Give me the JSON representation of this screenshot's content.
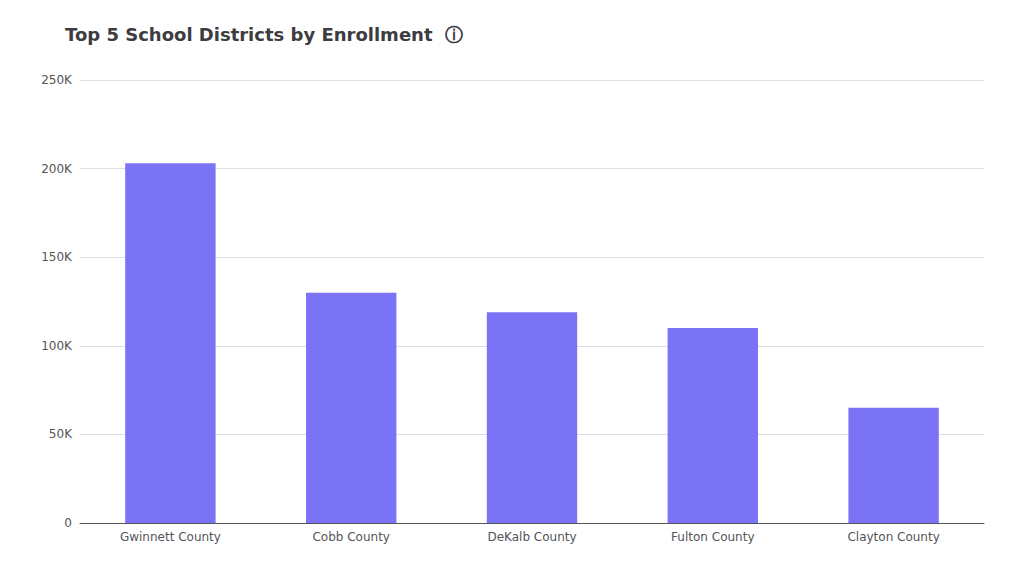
{
  "chart_data": {
    "type": "bar",
    "title": "Top 5 School Districts by Enrollment  ⓘ",
    "categories": [
      "Gwinnett County",
      "Cobb County",
      "DeKalb County",
      "Fulton County",
      "Clayton County"
    ],
    "values": [
      203000,
      130000,
      119000,
      110000,
      65000
    ],
    "color": "#7B73F5",
    "ylim": [
      0,
      250000
    ],
    "yticks": [
      0,
      {
        "value": 50000,
        "label": "50K"
      },
      {
        "value": 100000,
        "label": "100K"
      },
      {
        "value": 150000,
        "label": "150K"
      },
      {
        "value": 200000,
        "label": "200K"
      },
      {
        "value": 250000,
        "label": "250K"
      }
    ],
    "grid": true
  }
}
